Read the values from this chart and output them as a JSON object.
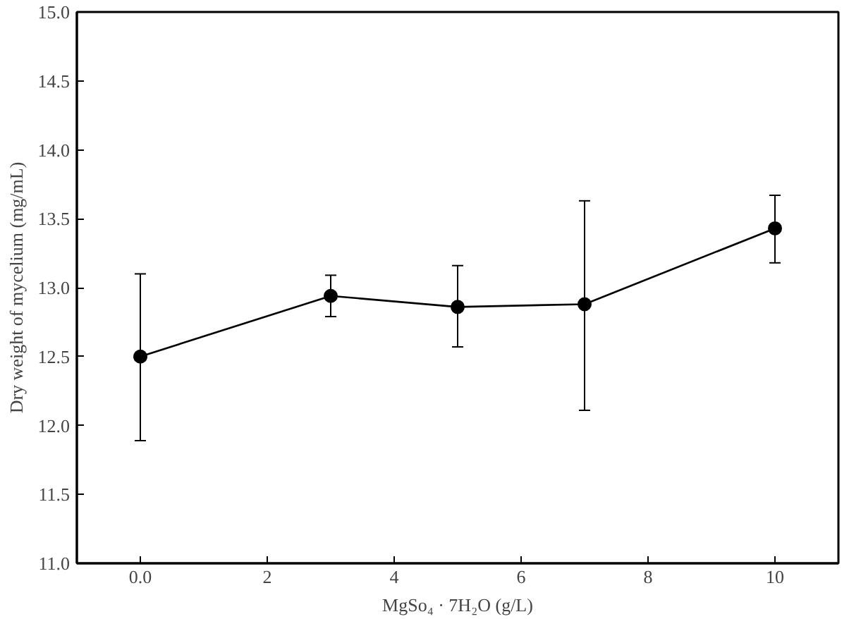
{
  "chart_data": {
    "type": "line",
    "xlabel": "MgSo₄ · 7H₂O (g/L)",
    "ylabel": "Dry weight of mycelium (mg/mL)",
    "x": [
      0,
      3,
      5,
      7,
      10
    ],
    "series": [
      {
        "color": "#000000",
        "values": [
          12.5,
          12.94,
          12.86,
          12.88,
          13.43
        ],
        "errors": [
          [
            11.89,
            13.1
          ],
          [
            12.79,
            13.09
          ],
          [
            12.57,
            13.16
          ],
          [
            12.11,
            13.63
          ],
          [
            13.18,
            13.67
          ]
        ]
      }
    ],
    "xlim": [
      -1,
      11
    ],
    "xticks": [
      {
        "value": 0,
        "label": "0.0"
      },
      2,
      4,
      6,
      8,
      10
    ],
    "ylim": [
      11.0,
      15.0
    ],
    "yticks": [
      {
        "value": 11.0,
        "label": "11.0"
      },
      11.5,
      {
        "value": 12.0,
        "label": "12.0"
      },
      12.5,
      {
        "value": 13.0,
        "label": "13.0"
      },
      13.5,
      {
        "value": 14.0,
        "label": "14.0"
      },
      14.5,
      {
        "value": 15.0,
        "label": "15.0"
      }
    ],
    "grid": false,
    "marker": "circle",
    "line_style": "solid"
  }
}
